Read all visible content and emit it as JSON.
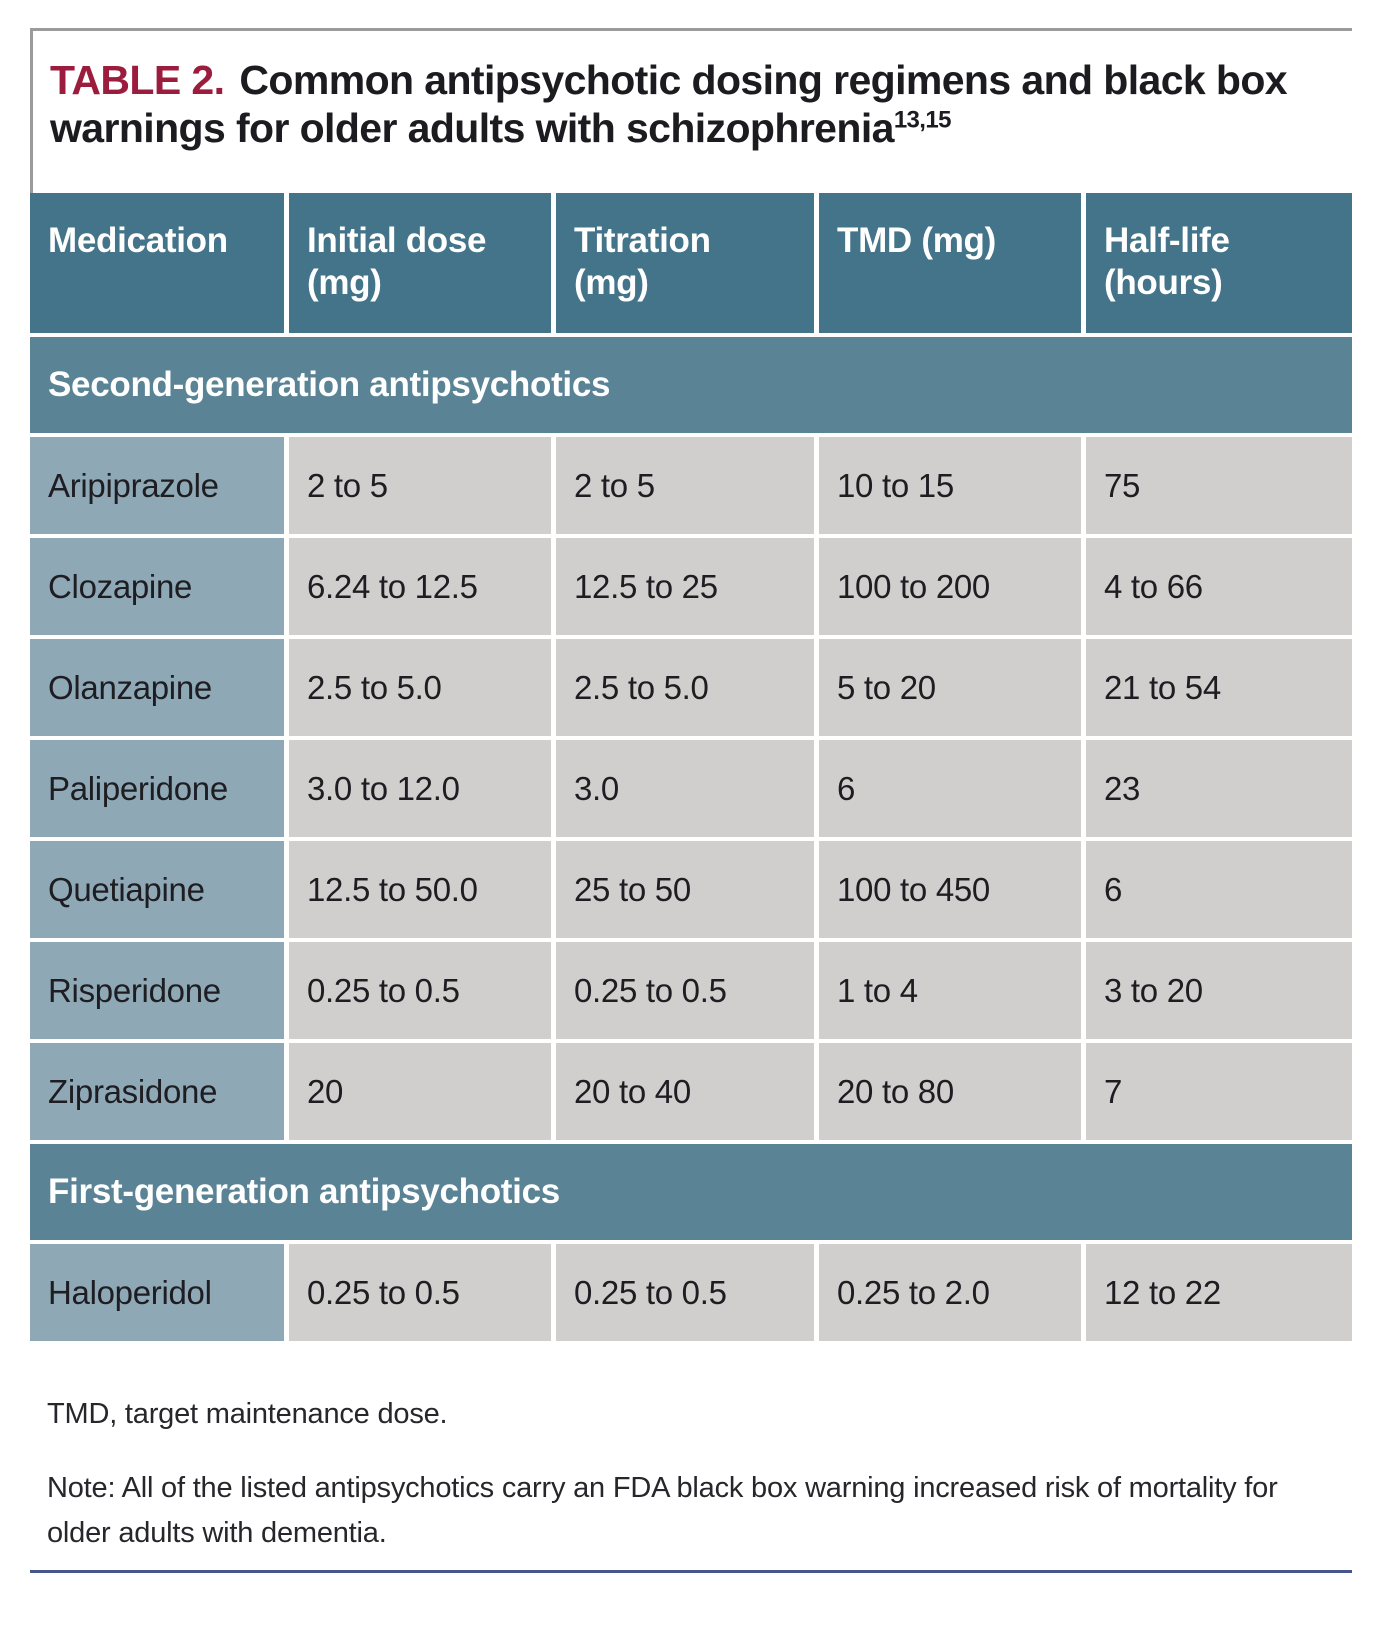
{
  "title": {
    "label": "TABLE 2.",
    "text": "Common antipsychotic dosing regimens and black box warnings for older adults with schizophrenia",
    "superscript": "13,15"
  },
  "table": {
    "columns": [
      "Medication",
      "Initial dose\n(mg)",
      "Titration\n(mg)",
      "TMD (mg)",
      "Half-life\n(hours)"
    ],
    "sections": [
      {
        "label": "Second-generation antipsychotics",
        "rows": [
          [
            "Aripiprazole",
            "2 to 5",
            "2 to 5",
            "10 to 15",
            "75"
          ],
          [
            "Clozapine",
            "6.24 to 12.5",
            "12.5 to 25",
            "100 to 200",
            "4 to 66"
          ],
          [
            "Olanzapine",
            "2.5 to 5.0",
            "2.5 to 5.0",
            "5 to 20",
            "21 to 54"
          ],
          [
            "Paliperidone",
            "3.0 to 12.0",
            "3.0",
            "6",
            "23"
          ],
          [
            "Quetiapine",
            "12.5 to 50.0",
            "25 to 50",
            "100 to 450",
            "6"
          ],
          [
            "Risperidone",
            "0.25 to 0.5",
            "0.25 to 0.5",
            "1 to 4",
            "3 to 20"
          ],
          [
            "Ziprasidone",
            "20",
            "20 to 40",
            "20 to 80",
            "7"
          ]
        ]
      },
      {
        "label": "First-generation antipsychotics",
        "rows": [
          [
            "Haloperidol",
            "0.25 to 0.5",
            "0.25 to 0.5",
            "0.25 to 2.0",
            "12 to 22"
          ]
        ]
      }
    ]
  },
  "footnotes": {
    "abbreviation": "TMD, target maintenance dose.",
    "note": "Note: All of the listed antipsychotics carry an FDA black box warning increased risk of mortality for older adults with dementia."
  },
  "colors": {
    "title_accent": "#9c1c3e",
    "header_teal": "#44748a",
    "section_teal": "#5a8496",
    "medication_cell": "#8ea8b6",
    "data_cell": "#d1cfce",
    "border_gray": "#9b9b9b",
    "bottom_rule": "#47568a"
  }
}
